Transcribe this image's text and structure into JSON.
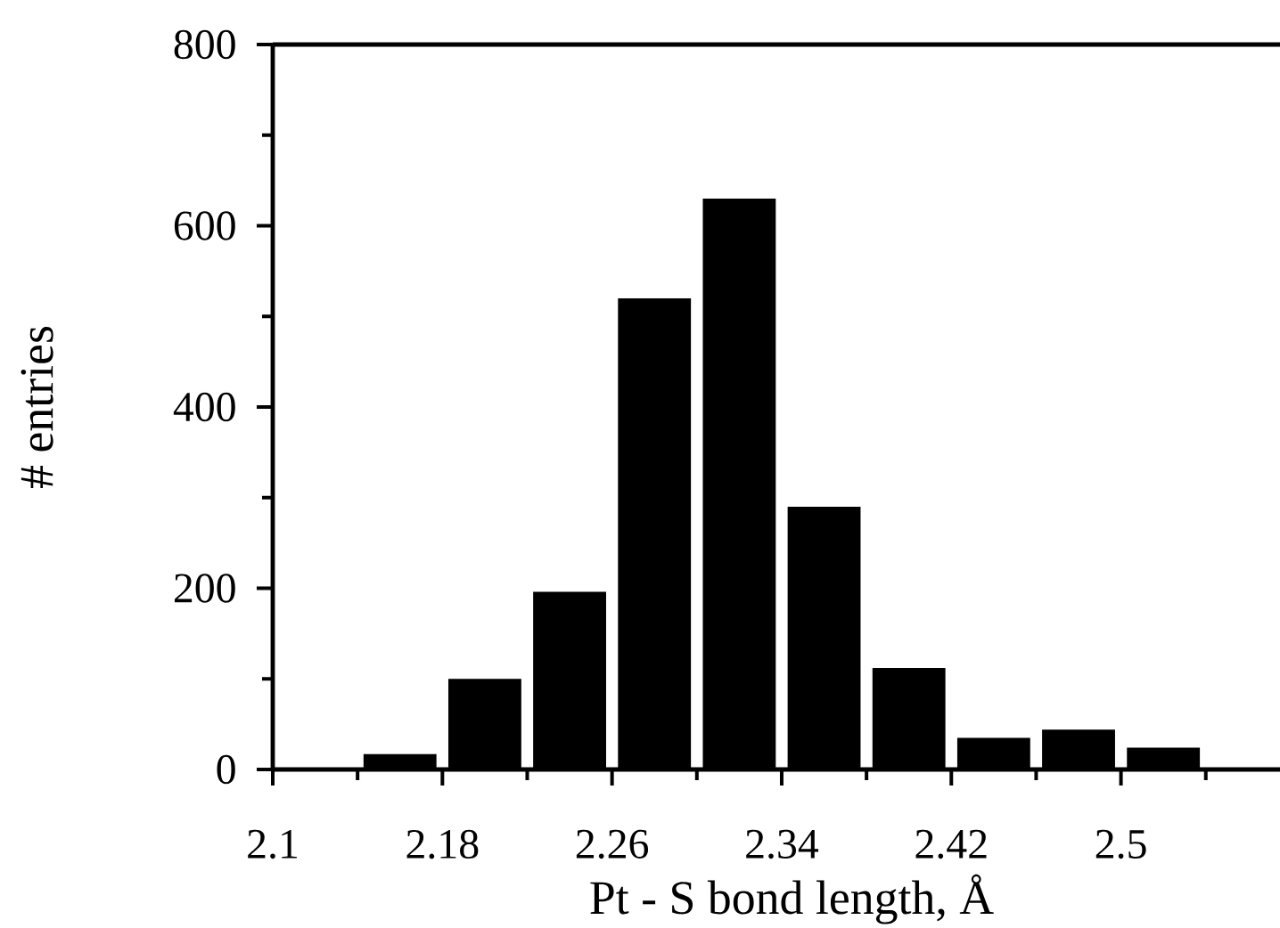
{
  "chart_data": {
    "type": "histogram",
    "xlabel": "Pt - S bond length, Å",
    "ylabel": "# entries",
    "bins": [
      2.14,
      2.18,
      2.22,
      2.26,
      2.3,
      2.34,
      2.38,
      2.42,
      2.46,
      2.5,
      2.54
    ],
    "values": [
      17,
      100,
      196,
      520,
      630,
      290,
      112,
      35,
      44,
      24
    ],
    "color": "#000000",
    "xlim": [
      2.1,
      2.575
    ],
    "ylim": [
      0,
      800
    ],
    "xticks": [
      2.1,
      {
        "value": 2.14,
        "label": null
      },
      2.18,
      {
        "value": 2.22,
        "label": null
      },
      2.26,
      {
        "value": 2.3,
        "label": null
      },
      2.34,
      {
        "value": 2.38,
        "label": null
      },
      2.42,
      {
        "value": 2.46,
        "label": null
      },
      2.5,
      {
        "value": 2.54,
        "label": null
      }
    ],
    "yticks": [
      0,
      {
        "value": 100,
        "label": null
      },
      200,
      {
        "value": 300,
        "label": null
      },
      400,
      {
        "value": 500,
        "label": null
      },
      600,
      {
        "value": 700,
        "label": null
      },
      800
    ]
  }
}
